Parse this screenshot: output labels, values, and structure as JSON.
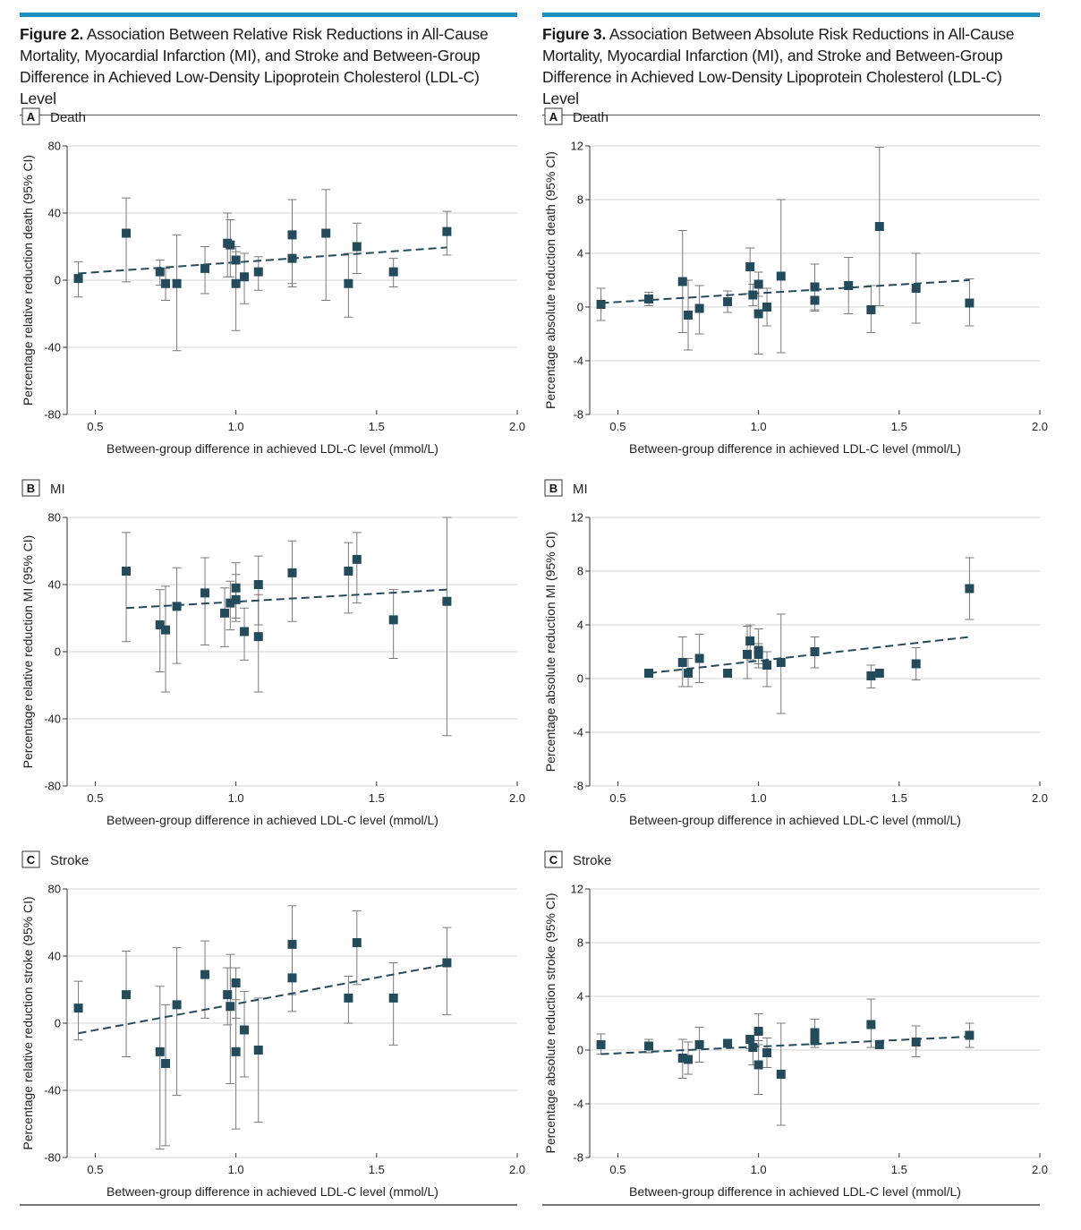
{
  "figures": [
    {
      "id": "fig2",
      "title_lead": "Figure 2.",
      "title_rest": " Association Between Relative Risk Reductions in All-Cause Mortality, Myocardial Infarction (MI), and Stroke and Between-Group Difference in Achieved Low-Density Lipoprotein Cholesterol (LDL-C) Level"
    },
    {
      "id": "fig3",
      "title_lead": "Figure 3.",
      "title_rest": " Association Between Absolute Risk Reductions in All-Cause Mortality, Myocardial Infarction (MI), and Stroke and Between-Group Difference in Achieved Low-Density Lipoprotein Cholesterol (LDL-C) Level"
    }
  ],
  "colors": {
    "marker": "#244b5c",
    "trend": "#244b5c",
    "error_bar": "#7a7a7a",
    "grid": "#d4d4d4",
    "accent": "#1d8fbf"
  },
  "chart_data": [
    {
      "figure": "fig2",
      "panel_letter": "A",
      "panel_name": "Death",
      "type": "scatter",
      "xlabel": "Between-group difference in achieved LDL-C level (mmol/L)",
      "ylabel": "Percentage relative reduction death (95% CI)",
      "xlim": [
        0.4,
        2.0
      ],
      "xticks": [
        0.5,
        1.0,
        1.5,
        2.0
      ],
      "ylim": [
        -80,
        80
      ],
      "yticks": [
        80,
        40,
        0,
        -40,
        -80
      ],
      "grid": "horizontal",
      "points": [
        {
          "x": 0.44,
          "y": 1,
          "lo": -10,
          "hi": 11
        },
        {
          "x": 0.61,
          "y": 28,
          "lo": -1,
          "hi": 49
        },
        {
          "x": 0.73,
          "y": 5,
          "lo": -3,
          "hi": 12
        },
        {
          "x": 0.75,
          "y": -2,
          "lo": -12,
          "hi": 7
        },
        {
          "x": 0.79,
          "y": -2,
          "lo": -42,
          "hi": 27
        },
        {
          "x": 0.89,
          "y": 7,
          "lo": -8,
          "hi": 20
        },
        {
          "x": 0.97,
          "y": 22,
          "lo": 2,
          "hi": 40
        },
        {
          "x": 0.98,
          "y": 21,
          "lo": 2,
          "hi": 36
        },
        {
          "x": 1.0,
          "y": 12,
          "lo": -1,
          "hi": 20
        },
        {
          "x": 1.0,
          "y": -2,
          "lo": -30,
          "hi": 17
        },
        {
          "x": 1.03,
          "y": 2,
          "lo": -14,
          "hi": 16
        },
        {
          "x": 1.08,
          "y": 5,
          "lo": -6,
          "hi": 14
        },
        {
          "x": 1.2,
          "y": 27,
          "lo": -4,
          "hi": 48
        },
        {
          "x": 1.2,
          "y": 13,
          "lo": -2,
          "hi": 27
        },
        {
          "x": 1.32,
          "y": 28,
          "lo": -12,
          "hi": 54
        },
        {
          "x": 1.4,
          "y": -2,
          "lo": -22,
          "hi": 16
        },
        {
          "x": 1.43,
          "y": 20,
          "lo": 4,
          "hi": 34
        },
        {
          "x": 1.56,
          "y": 5,
          "lo": -4,
          "hi": 13
        },
        {
          "x": 1.75,
          "y": 29,
          "lo": 15,
          "hi": 41
        }
      ],
      "trend": {
        "x": [
          0.44,
          1.75
        ],
        "y": [
          4,
          19.5
        ]
      }
    },
    {
      "figure": "fig2",
      "panel_letter": "B",
      "panel_name": "MI",
      "type": "scatter",
      "xlabel": "Between-group difference in achieved LDL-C level (mmol/L)",
      "ylabel": "Percentage relative reduction MI (95% CI)",
      "xlim": [
        0.4,
        2.0
      ],
      "xticks": [
        0.5,
        1.0,
        1.5,
        2.0
      ],
      "ylim": [
        -80,
        80
      ],
      "yticks": [
        80,
        40,
        0,
        -40,
        -80
      ],
      "grid": "horizontal",
      "points": [
        {
          "x": 0.61,
          "y": 48,
          "lo": 6,
          "hi": 71
        },
        {
          "x": 0.73,
          "y": 16,
          "lo": -12,
          "hi": 37
        },
        {
          "x": 0.75,
          "y": 13,
          "lo": -24,
          "hi": 39
        },
        {
          "x": 0.79,
          "y": 27,
          "lo": -7,
          "hi": 50
        },
        {
          "x": 0.89,
          "y": 35,
          "lo": 4,
          "hi": 56
        },
        {
          "x": 0.96,
          "y": 23,
          "lo": 3,
          "hi": 38
        },
        {
          "x": 0.98,
          "y": 29,
          "lo": 13,
          "hi": 42
        },
        {
          "x": 1.0,
          "y": 38,
          "lo": 20,
          "hi": 53
        },
        {
          "x": 1.0,
          "y": 31,
          "lo": 18,
          "hi": 46
        },
        {
          "x": 1.03,
          "y": 12,
          "lo": -5,
          "hi": 26
        },
        {
          "x": 1.08,
          "y": 40,
          "lo": 16,
          "hi": 57
        },
        {
          "x": 1.08,
          "y": 9,
          "lo": -24,
          "hi": 34
        },
        {
          "x": 1.2,
          "y": 47,
          "lo": 18,
          "hi": 66
        },
        {
          "x": 1.4,
          "y": 48,
          "lo": 23,
          "hi": 65
        },
        {
          "x": 1.43,
          "y": 55,
          "lo": 29,
          "hi": 71
        },
        {
          "x": 1.56,
          "y": 19,
          "lo": -4,
          "hi": 37
        },
        {
          "x": 1.75,
          "y": 30,
          "lo": -50,
          "hi": 80
        }
      ],
      "trend": {
        "x": [
          0.61,
          1.75
        ],
        "y": [
          26,
          37
        ]
      }
    },
    {
      "figure": "fig2",
      "panel_letter": "C",
      "panel_name": "Stroke",
      "type": "scatter",
      "xlabel": "Between-group difference in achieved LDL-C level (mmol/L)",
      "ylabel": "Percentage relative reduction stroke (95% CI)",
      "xlim": [
        0.4,
        2.0
      ],
      "xticks": [
        0.5,
        1.0,
        1.5,
        2.0
      ],
      "ylim": [
        -80,
        80
      ],
      "yticks": [
        80,
        40,
        0,
        -40,
        -80
      ],
      "grid": "horizontal",
      "points": [
        {
          "x": 0.44,
          "y": 9,
          "lo": -10,
          "hi": 25
        },
        {
          "x": 0.61,
          "y": 17,
          "lo": -20,
          "hi": 43
        },
        {
          "x": 0.73,
          "y": -17,
          "lo": -75,
          "hi": 22
        },
        {
          "x": 0.75,
          "y": -24,
          "lo": -73,
          "hi": 11
        },
        {
          "x": 0.79,
          "y": 11,
          "lo": -43,
          "hi": 45
        },
        {
          "x": 0.89,
          "y": 29,
          "lo": 3,
          "hi": 49
        },
        {
          "x": 0.97,
          "y": 17,
          "lo": -1,
          "hi": 33
        },
        {
          "x": 0.98,
          "y": 10,
          "lo": -36,
          "hi": 41
        },
        {
          "x": 1.0,
          "y": 24,
          "lo": 3,
          "hi": 33
        },
        {
          "x": 1.0,
          "y": -17,
          "lo": -63,
          "hi": 14
        },
        {
          "x": 1.03,
          "y": -4,
          "lo": -32,
          "hi": 19
        },
        {
          "x": 1.08,
          "y": -16,
          "lo": -59,
          "hi": 15
        },
        {
          "x": 1.2,
          "y": 47,
          "lo": 17,
          "hi": 70
        },
        {
          "x": 1.2,
          "y": 27,
          "lo": 7,
          "hi": 45
        },
        {
          "x": 1.4,
          "y": 15,
          "lo": 0,
          "hi": 28
        },
        {
          "x": 1.43,
          "y": 48,
          "lo": 23,
          "hi": 67
        },
        {
          "x": 1.56,
          "y": 15,
          "lo": -13,
          "hi": 36
        },
        {
          "x": 1.75,
          "y": 36,
          "lo": 5,
          "hi": 57
        }
      ],
      "trend": {
        "x": [
          0.44,
          1.75
        ],
        "y": [
          -6,
          35
        ]
      }
    },
    {
      "figure": "fig3",
      "panel_letter": "A",
      "panel_name": "Death",
      "type": "scatter",
      "xlabel": "Between-group difference in achieved LDL-C level (mmol/L)",
      "ylabel": "Percentage absolute reduction death (95% CI)",
      "xlim": [
        0.4,
        2.0
      ],
      "xticks": [
        0.5,
        1.0,
        1.5,
        2.0
      ],
      "ylim": [
        -8,
        12
      ],
      "yticks": [
        12,
        8,
        4,
        0,
        -4,
        -8
      ],
      "grid": "horizontal",
      "points": [
        {
          "x": 0.44,
          "y": 0.2,
          "lo": -1.0,
          "hi": 1.4
        },
        {
          "x": 0.61,
          "y": 0.6,
          "lo": 0.1,
          "hi": 1.1
        },
        {
          "x": 0.73,
          "y": 1.9,
          "lo": -1.9,
          "hi": 5.7
        },
        {
          "x": 0.75,
          "y": -0.6,
          "lo": -3.2,
          "hi": 2.0
        },
        {
          "x": 0.79,
          "y": -0.1,
          "lo": -2.0,
          "hi": 1.6
        },
        {
          "x": 0.89,
          "y": 0.4,
          "lo": -0.4,
          "hi": 1.2
        },
        {
          "x": 0.97,
          "y": 3.0,
          "lo": 1.0,
          "hi": 4.4
        },
        {
          "x": 0.98,
          "y": 0.9,
          "lo": 0.1,
          "hi": 1.7
        },
        {
          "x": 1.0,
          "y": 1.7,
          "lo": 0.8,
          "hi": 2.6
        },
        {
          "x": 1.0,
          "y": -0.5,
          "lo": -3.5,
          "hi": 2.6
        },
        {
          "x": 1.03,
          "y": 0.0,
          "lo": -1.4,
          "hi": 1.4
        },
        {
          "x": 1.08,
          "y": 2.3,
          "lo": -3.4,
          "hi": 8.0
        },
        {
          "x": 1.2,
          "y": 1.5,
          "lo": -0.2,
          "hi": 3.2
        },
        {
          "x": 1.2,
          "y": 0.5,
          "lo": -0.3,
          "hi": 1.4
        },
        {
          "x": 1.32,
          "y": 1.6,
          "lo": -0.5,
          "hi": 3.7
        },
        {
          "x": 1.4,
          "y": -0.2,
          "lo": -1.9,
          "hi": 1.6
        },
        {
          "x": 1.43,
          "y": 6.0,
          "lo": 0.1,
          "hi": 11.9
        },
        {
          "x": 1.56,
          "y": 1.4,
          "lo": -1.2,
          "hi": 4.0
        },
        {
          "x": 1.75,
          "y": 0.3,
          "lo": -1.4,
          "hi": 2.1
        }
      ],
      "trend": {
        "x": [
          0.44,
          1.75
        ],
        "y": [
          0.3,
          2.0
        ]
      }
    },
    {
      "figure": "fig3",
      "panel_letter": "B",
      "panel_name": "MI",
      "type": "scatter",
      "xlabel": "Between-group difference in achieved LDL-C level (mmol/L)",
      "ylabel": "Percentage absolute reduction MI (95% CI)",
      "xlim": [
        0.4,
        2.0
      ],
      "xticks": [
        0.5,
        1.0,
        1.5,
        2.0
      ],
      "ylim": [
        -8,
        12
      ],
      "yticks": [
        12,
        8,
        4,
        0,
        -4,
        -8
      ],
      "grid": "horizontal",
      "points": [
        {
          "x": 0.61,
          "y": 0.4,
          "lo": 0.2,
          "hi": 0.6
        },
        {
          "x": 0.73,
          "y": 1.2,
          "lo": -0.6,
          "hi": 3.1
        },
        {
          "x": 0.75,
          "y": 0.4,
          "lo": -0.6,
          "hi": 1.5
        },
        {
          "x": 0.79,
          "y": 1.5,
          "lo": -0.3,
          "hi": 3.3
        },
        {
          "x": 0.89,
          "y": 0.4,
          "lo": 0.2,
          "hi": 0.7
        },
        {
          "x": 0.96,
          "y": 1.8,
          "lo": 0.0,
          "hi": 3.9
        },
        {
          "x": 0.97,
          "y": 2.8,
          "lo": 1.4,
          "hi": 4.0
        },
        {
          "x": 1.0,
          "y": 2.1,
          "lo": 1.1,
          "hi": 3.7
        },
        {
          "x": 1.0,
          "y": 1.8,
          "lo": 0.8,
          "hi": 2.6
        },
        {
          "x": 1.03,
          "y": 1.0,
          "lo": -0.6,
          "hi": 2.0
        },
        {
          "x": 1.08,
          "y": 1.2,
          "lo": -2.6,
          "hi": 4.8
        },
        {
          "x": 1.2,
          "y": 2.0,
          "lo": 0.8,
          "hi": 3.1
        },
        {
          "x": 1.4,
          "y": 0.2,
          "lo": -0.7,
          "hi": 1.0
        },
        {
          "x": 1.43,
          "y": 0.4,
          "lo": 0.2,
          "hi": 0.6
        },
        {
          "x": 1.56,
          "y": 1.1,
          "lo": -0.1,
          "hi": 2.3
        },
        {
          "x": 1.75,
          "y": 6.7,
          "lo": 4.4,
          "hi": 9.0
        }
      ],
      "trend": {
        "x": [
          0.61,
          1.75
        ],
        "y": [
          0.4,
          3.1
        ]
      }
    },
    {
      "figure": "fig3",
      "panel_letter": "C",
      "panel_name": "Stroke",
      "type": "scatter",
      "xlabel": "Between-group difference in achieved LDL-C level (mmol/L)",
      "ylabel": "Percentage absolute reduction stroke (95% CI)",
      "xlim": [
        0.4,
        2.0
      ],
      "xticks": [
        0.5,
        1.0,
        1.5,
        2.0
      ],
      "ylim": [
        -8,
        12
      ],
      "yticks": [
        12,
        8,
        4,
        0,
        -4,
        -8
      ],
      "grid": "horizontal",
      "points": [
        {
          "x": 0.44,
          "y": 0.4,
          "lo": -0.3,
          "hi": 1.2
        },
        {
          "x": 0.61,
          "y": 0.3,
          "lo": -0.2,
          "hi": 0.8
        },
        {
          "x": 0.73,
          "y": -0.6,
          "lo": -2.1,
          "hi": 0.8
        },
        {
          "x": 0.75,
          "y": -0.7,
          "lo": -1.8,
          "hi": 0.6
        },
        {
          "x": 0.79,
          "y": 0.4,
          "lo": -0.9,
          "hi": 1.7
        },
        {
          "x": 0.89,
          "y": 0.5,
          "lo": 0.2,
          "hi": 0.8
        },
        {
          "x": 0.97,
          "y": 0.8,
          "lo": 0.1,
          "hi": 1.1
        },
        {
          "x": 0.98,
          "y": 0.2,
          "lo": -1.1,
          "hi": 1.1
        },
        {
          "x": 1.0,
          "y": 1.4,
          "lo": 0.4,
          "hi": 2.7
        },
        {
          "x": 1.0,
          "y": -1.1,
          "lo": -3.3,
          "hi": 0.7
        },
        {
          "x": 1.03,
          "y": -0.2,
          "lo": -1.3,
          "hi": 0.9
        },
        {
          "x": 1.08,
          "y": -1.8,
          "lo": -5.6,
          "hi": 2.0
        },
        {
          "x": 1.2,
          "y": 1.3,
          "lo": 0.2,
          "hi": 2.3
        },
        {
          "x": 1.2,
          "y": 0.7,
          "lo": 0.2,
          "hi": 1.2
        },
        {
          "x": 1.4,
          "y": 1.9,
          "lo": 0.2,
          "hi": 3.8
        },
        {
          "x": 1.43,
          "y": 0.4,
          "lo": 0.2,
          "hi": 0.6
        },
        {
          "x": 1.56,
          "y": 0.6,
          "lo": -0.5,
          "hi": 1.8
        },
        {
          "x": 1.75,
          "y": 1.1,
          "lo": 0.2,
          "hi": 2.0
        }
      ],
      "trend": {
        "x": [
          0.44,
          1.75
        ],
        "y": [
          -0.3,
          1.0
        ]
      }
    }
  ]
}
